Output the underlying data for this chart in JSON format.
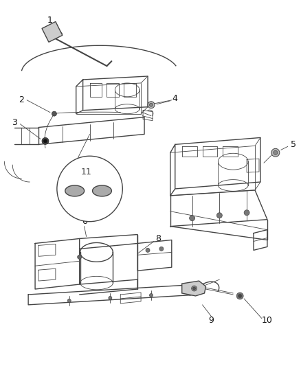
{
  "bg_color": "#ffffff",
  "line_color": "#444444",
  "label_color": "#111111",
  "gray_light": "#c8c8c8",
  "gray_med": "#888888",
  "gray_dark": "#555555"
}
